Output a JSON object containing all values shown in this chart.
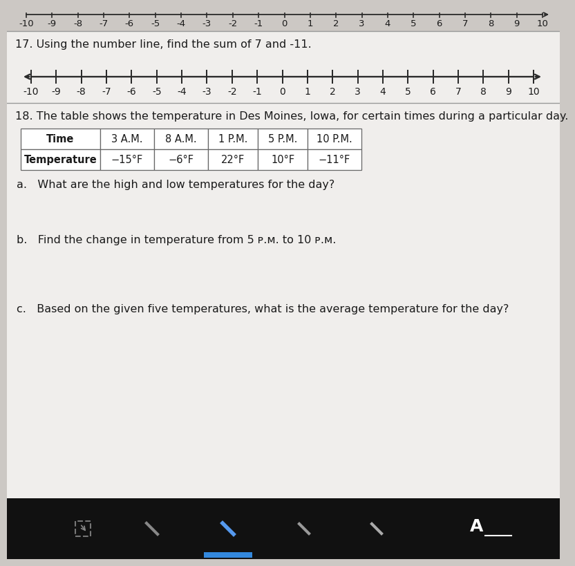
{
  "bg_color": "#ccc8c4",
  "content_bg": "#f0eeec",
  "text_color": "#1a1a1a",
  "line_color": "#2a2a2a",
  "sep_color": "#999999",
  "toolbar_color": "#111111",
  "q17_label": "17. Using the number line, find the sum of 7 and -11.",
  "q18_label": "18. The table shows the temperature in Des Moines, Iowa, for certain times during a particular day.",
  "table_headers": [
    "Time",
    "3 A.M.",
    "8 A.M.",
    "1 P.M.",
    "5 P.M.",
    "10 P.M."
  ],
  "table_row1": [
    "Temperature",
    "−15°F",
    "−6°F",
    "22°F",
    "10°F",
    "−11°F"
  ],
  "qa_label": "a.   What are the high and low temperatures for the day?",
  "qb_label": "b.   Find the change in temperature from 5 ᴘ.ᴍ. to 10 ᴘ.ᴍ.",
  "qc_label": "c.   Based on the given five temperatures, what is the average temperature for the day?",
  "tick_labels": [
    -10,
    -9,
    -8,
    -7,
    -6,
    -5,
    -4,
    -3,
    -2,
    -1,
    0,
    1,
    2,
    3,
    4,
    5,
    6,
    7,
    8,
    9,
    10
  ],
  "font_size_main": 11.5,
  "font_size_tick": 9.5,
  "font_size_table": 10.5
}
